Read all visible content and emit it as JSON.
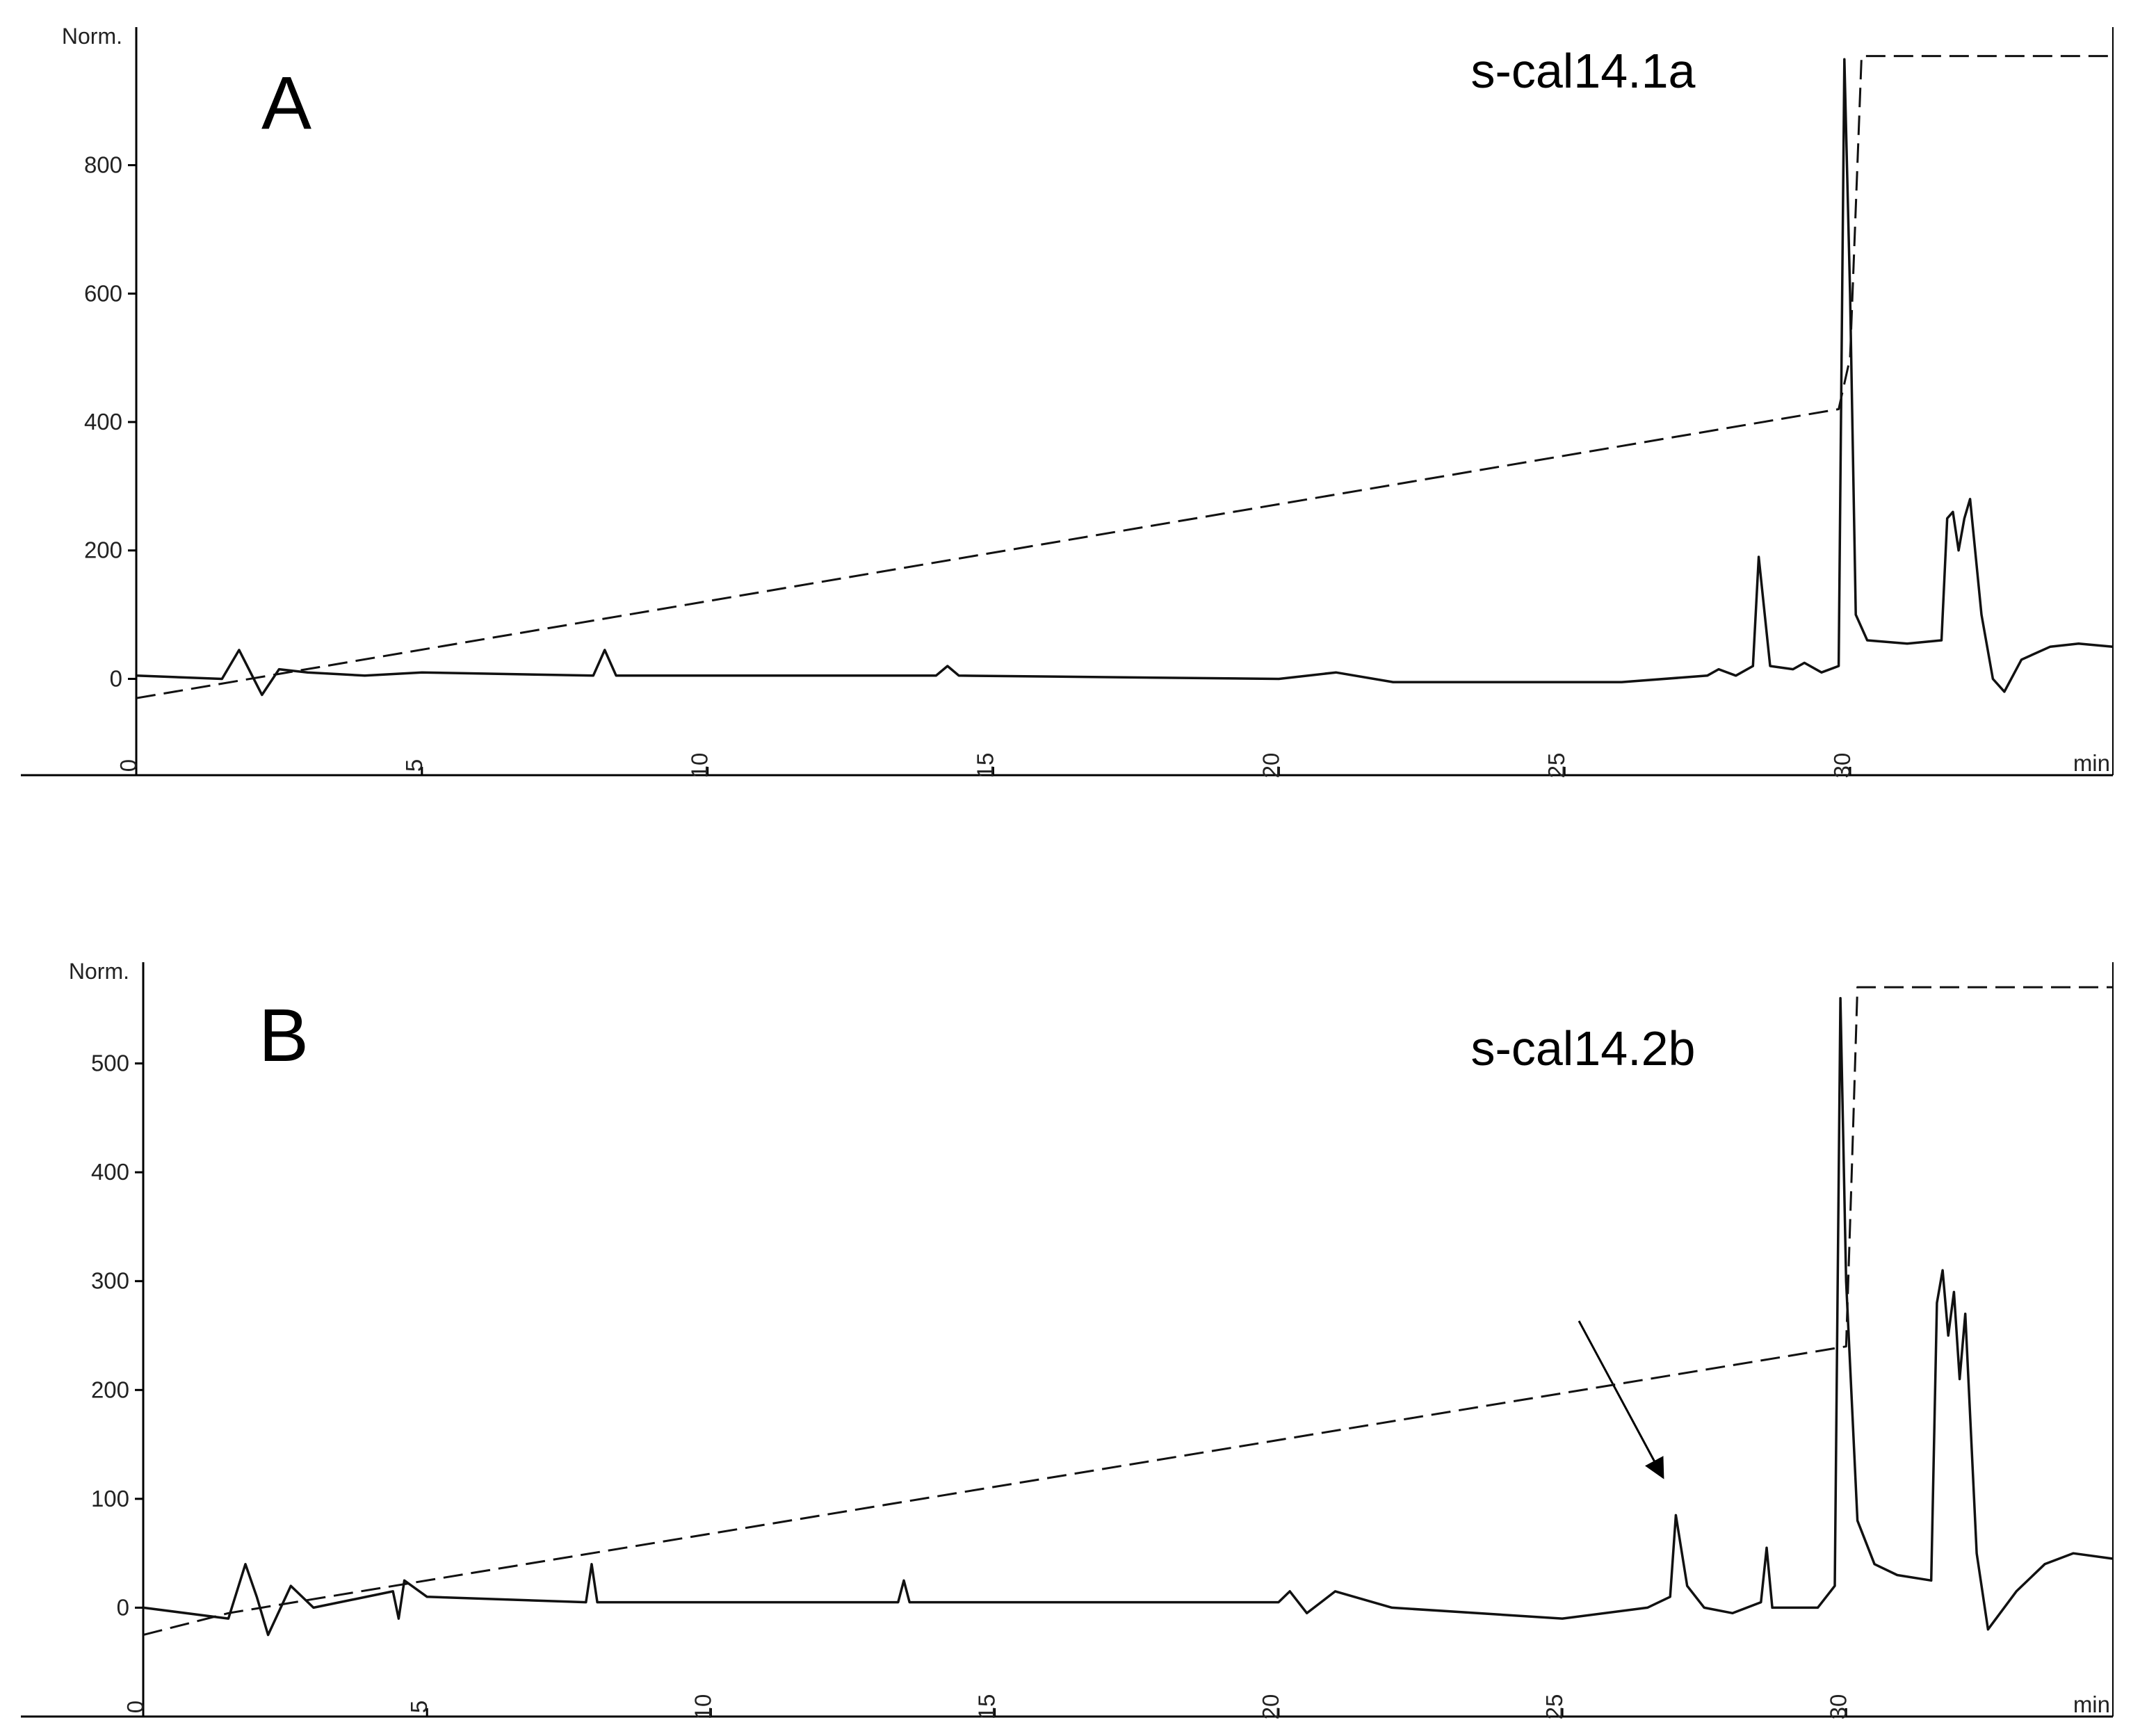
{
  "chart_data": [
    {
      "type": "line",
      "panel_label": "A",
      "annotation": "s-cal14.1a",
      "ylabel": "Norm.",
      "xlabel": "min",
      "xlim": [
        0,
        34.6
      ],
      "xticks": [
        0,
        5,
        10,
        15,
        20,
        25,
        30
      ],
      "ylim": [
        -150,
        1015
      ],
      "yticks": [
        0,
        200,
        400,
        600,
        800
      ],
      "series": [
        {
          "color": "#111111",
          "style": "solid",
          "x": [
            0,
            1.5,
            1.8,
            2.0,
            2.2,
            2.5,
            3,
            4,
            5,
            8,
            8.2,
            8.4,
            14,
            14.2,
            14.4,
            20,
            21,
            22,
            26,
            27.5,
            27.7,
            28,
            28.3,
            28.4,
            28.6,
            29,
            29.2,
            29.5,
            29.8,
            29.9,
            30.0,
            30.1,
            30.3,
            31,
            31.6,
            31.7,
            31.8,
            31.9,
            32.0,
            32.1,
            32.3,
            32.5,
            32.7,
            33,
            33.5,
            34,
            34.6
          ],
          "values": [
            5,
            0,
            45,
            10,
            -25,
            15,
            10,
            5,
            10,
            5,
            45,
            5,
            5,
            20,
            5,
            0,
            10,
            -5,
            -5,
            5,
            15,
            5,
            20,
            190,
            20,
            15,
            25,
            10,
            20,
            965,
            600,
            100,
            60,
            55,
            60,
            250,
            260,
            200,
            250,
            280,
            100,
            0,
            -20,
            30,
            50,
            55,
            50
          ]
        },
        {
          "color": "#111111",
          "style": "dashed",
          "x": [
            0,
            29.8,
            30.0,
            30.2,
            34.6
          ],
          "values": [
            -30,
            420,
            500,
            970,
            970
          ]
        }
      ]
    },
    {
      "type": "line",
      "panel_label": "B",
      "annotation": "s-cal14.2b",
      "ylabel": "Norm.",
      "xlabel": "min",
      "xlim": [
        0,
        34.7
      ],
      "xticks": [
        0,
        5,
        10,
        15,
        20,
        25,
        30
      ],
      "ylim": [
        -100,
        593
      ],
      "yticks": [
        0,
        100,
        200,
        300,
        400,
        500
      ],
      "series": [
        {
          "color": "#111111",
          "style": "solid",
          "x": [
            0,
            1.5,
            1.8,
            2.0,
            2.2,
            2.6,
            3,
            4.4,
            4.5,
            4.6,
            5,
            7.8,
            7.9,
            8.0,
            13.3,
            13.4,
            13.5,
            20,
            20.2,
            20.5,
            21,
            22,
            25,
            26.5,
            26.9,
            27.0,
            27.2,
            27.5,
            28,
            28.5,
            28.6,
            28.7,
            29.5,
            29.8,
            29.9,
            30.0,
            30.2,
            30.5,
            30.9,
            31.5,
            31.6,
            31.7,
            31.8,
            31.9,
            32.0,
            32.1,
            32.3,
            32.5,
            33,
            33.5,
            34,
            34.7
          ],
          "values": [
            0,
            -10,
            40,
            10,
            -25,
            20,
            0,
            15,
            -10,
            25,
            10,
            5,
            40,
            5,
            5,
            25,
            5,
            5,
            15,
            -5,
            15,
            0,
            -10,
            0,
            10,
            85,
            20,
            0,
            -5,
            5,
            55,
            0,
            0,
            20,
            560,
            300,
            80,
            40,
            30,
            25,
            280,
            310,
            250,
            290,
            210,
            270,
            50,
            -20,
            15,
            40,
            50,
            45
          ]
        },
        {
          "color": "#111111",
          "style": "dashed",
          "x": [
            0,
            1.5,
            30,
            30.1,
            30.2,
            34.7
          ],
          "values": [
            -25,
            -5,
            240,
            400,
            570,
            570
          ]
        }
      ]
    }
  ]
}
